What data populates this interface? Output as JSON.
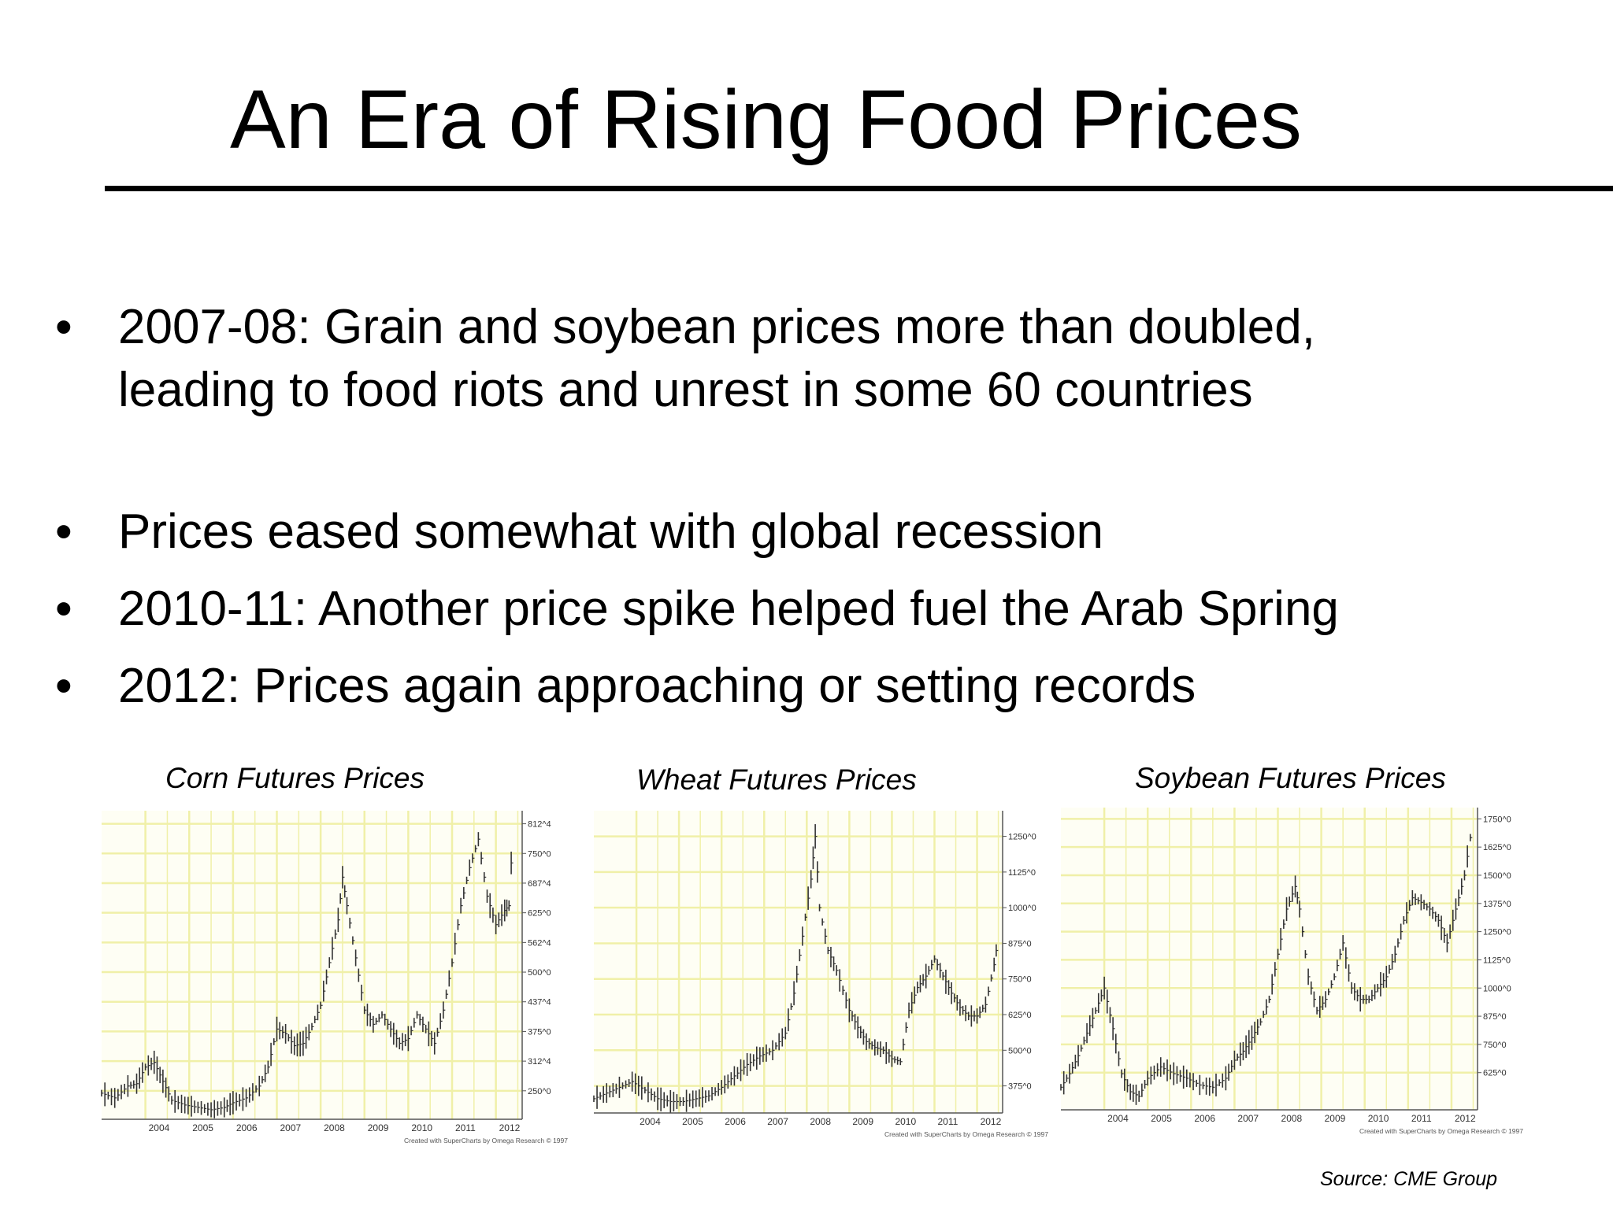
{
  "slide": {
    "title": "An Era of Rising Food Prices",
    "bullets": [
      "2007-08: Grain and soybean prices more than doubled, leading to food riots and unrest in some 60 countries",
      "Prices eased somewhat with global recession",
      "2010-11: Another price spike helped fuel the Arab Spring",
      "2012: Prices again approaching or setting records"
    ],
    "bullet_symbol": "•",
    "source": "Source: CME Group"
  },
  "colors": {
    "grid": "#f0f0a8",
    "price_bar": "#333333",
    "axis": "#555555"
  },
  "chart_data": [
    {
      "type": "line",
      "title": "Corn Futures Prices",
      "x_ticks": [
        "2004",
        "2005",
        "2006",
        "2007",
        "2008",
        "2009",
        "2010",
        "2011",
        "2012"
      ],
      "y_ticks": [
        "250^0",
        "312^4",
        "375^0",
        "437^4",
        "500^0",
        "562^4",
        "625^0",
        "687^4",
        "750^0",
        "812^4"
      ],
      "y_tick_values": [
        250,
        312.5,
        375,
        437.5,
        500,
        562.5,
        625,
        687.5,
        750,
        812.5
      ],
      "ylim": [
        190,
        840
      ],
      "xlim": [
        2003.0,
        2012.6
      ],
      "credit": "Created with SuperCharts by Omega Research © 1997",
      "series": [
        {
          "x": [
            2003.0,
            2003.3,
            2003.6,
            2003.8,
            2004.0,
            2004.2,
            2004.4,
            2004.6,
            2004.9,
            2005.2,
            2005.5,
            2005.8,
            2006.0,
            2006.3,
            2006.6,
            2006.8,
            2007.0,
            2007.2,
            2007.4,
            2007.6,
            2007.8,
            2008.0,
            2008.2,
            2008.4,
            2008.5,
            2008.6,
            2008.8,
            2009.0,
            2009.2,
            2009.4,
            2009.6,
            2009.8,
            2010.0,
            2010.2,
            2010.4,
            2010.6,
            2010.8,
            2011.0,
            2011.2,
            2011.4,
            2011.6,
            2011.8,
            2012.0,
            2012.2,
            2012.3,
            2012.4
          ],
          "y": [
            245,
            235,
            260,
            265,
            300,
            310,
            270,
            230,
            220,
            215,
            210,
            215,
            225,
            235,
            260,
            300,
            380,
            370,
            345,
            350,
            385,
            430,
            520,
            610,
            700,
            640,
            530,
            420,
            390,
            410,
            380,
            350,
            360,
            410,
            380,
            350,
            420,
            520,
            640,
            720,
            780,
            660,
            600,
            630,
            640,
            820
          ]
        }
      ]
    },
    {
      "type": "line",
      "title": "Wheat Futures Prices",
      "x_ticks": [
        "2004",
        "2005",
        "2006",
        "2007",
        "2008",
        "2009",
        "2010",
        "2011",
        "2012"
      ],
      "y_ticks": [
        "375^0",
        "500^0",
        "625^0",
        "750^0",
        "875^0",
        "1000^0",
        "1125^0",
        "1250^0"
      ],
      "y_tick_values": [
        375,
        500,
        625,
        750,
        875,
        1000,
        1125,
        1250
      ],
      "ylim": [
        280,
        1340
      ],
      "xlim": [
        2003.0,
        2012.6
      ],
      "credit": "Created with SuperCharts by Omega Research © 1997",
      "series": [
        {
          "x": [
            2003.0,
            2003.3,
            2003.6,
            2003.9,
            2004.2,
            2004.5,
            2004.8,
            2005.1,
            2005.4,
            2005.7,
            2006.0,
            2006.3,
            2006.6,
            2006.9,
            2007.2,
            2007.5,
            2007.7,
            2007.9,
            2008.1,
            2008.2,
            2008.3,
            2008.5,
            2008.7,
            2009.0,
            2009.2,
            2009.4,
            2009.6,
            2009.8,
            2010.0,
            2010.2,
            2010.4,
            2010.6,
            2010.8,
            2011.0,
            2011.2,
            2011.4,
            2011.6,
            2011.8,
            2012.0,
            2012.2,
            2012.4,
            2012.5
          ],
          "y": [
            330,
            350,
            370,
            390,
            360,
            330,
            320,
            320,
            330,
            340,
            370,
            410,
            450,
            480,
            500,
            560,
            700,
            900,
            1100,
            1250,
            1000,
            850,
            780,
            640,
            580,
            530,
            510,
            500,
            470,
            460,
            640,
            720,
            760,
            820,
            760,
            700,
            650,
            620,
            620,
            660,
            800,
            900
          ]
        }
      ]
    },
    {
      "type": "line",
      "title": "Soybean Futures Prices",
      "x_ticks": [
        "2004",
        "2005",
        "2006",
        "2007",
        "2008",
        "2009",
        "2010",
        "2011",
        "2012"
      ],
      "y_ticks": [
        "625^0",
        "750^0",
        "875^0",
        "1000^0",
        "1125^0",
        "1250^0",
        "1375^0",
        "1500^0",
        "1625^0",
        "1750^0"
      ],
      "y_tick_values": [
        625,
        750,
        875,
        1000,
        1125,
        1250,
        1375,
        1500,
        1625,
        1750
      ],
      "ylim": [
        460,
        1800
      ],
      "xlim": [
        2003.0,
        2012.6
      ],
      "credit": "Created with SuperCharts by Omega Research © 1997",
      "series": [
        {
          "x": [
            2003.0,
            2003.2,
            2003.4,
            2003.6,
            2003.8,
            2004.0,
            2004.2,
            2004.4,
            2004.6,
            2004.8,
            2005.0,
            2005.3,
            2005.6,
            2005.9,
            2006.2,
            2006.5,
            2006.8,
            2007.0,
            2007.2,
            2007.4,
            2007.6,
            2007.8,
            2008.0,
            2008.2,
            2008.4,
            2008.5,
            2008.7,
            2008.9,
            2009.1,
            2009.3,
            2009.5,
            2009.7,
            2009.9,
            2010.1,
            2010.3,
            2010.5,
            2010.7,
            2010.9,
            2011.1,
            2011.3,
            2011.5,
            2011.7,
            2011.9,
            2012.1,
            2012.3,
            2012.5
          ],
          "y": [
            560,
            620,
            700,
            800,
            900,
            1000,
            820,
            620,
            540,
            520,
            600,
            650,
            620,
            600,
            570,
            560,
            600,
            680,
            720,
            780,
            850,
            950,
            1150,
            1350,
            1450,
            1350,
            1050,
            900,
            950,
            1050,
            1200,
            1000,
            950,
            950,
            1000,
            1050,
            1150,
            1300,
            1400,
            1380,
            1350,
            1300,
            1200,
            1350,
            1500,
            1750
          ]
        }
      ]
    }
  ]
}
